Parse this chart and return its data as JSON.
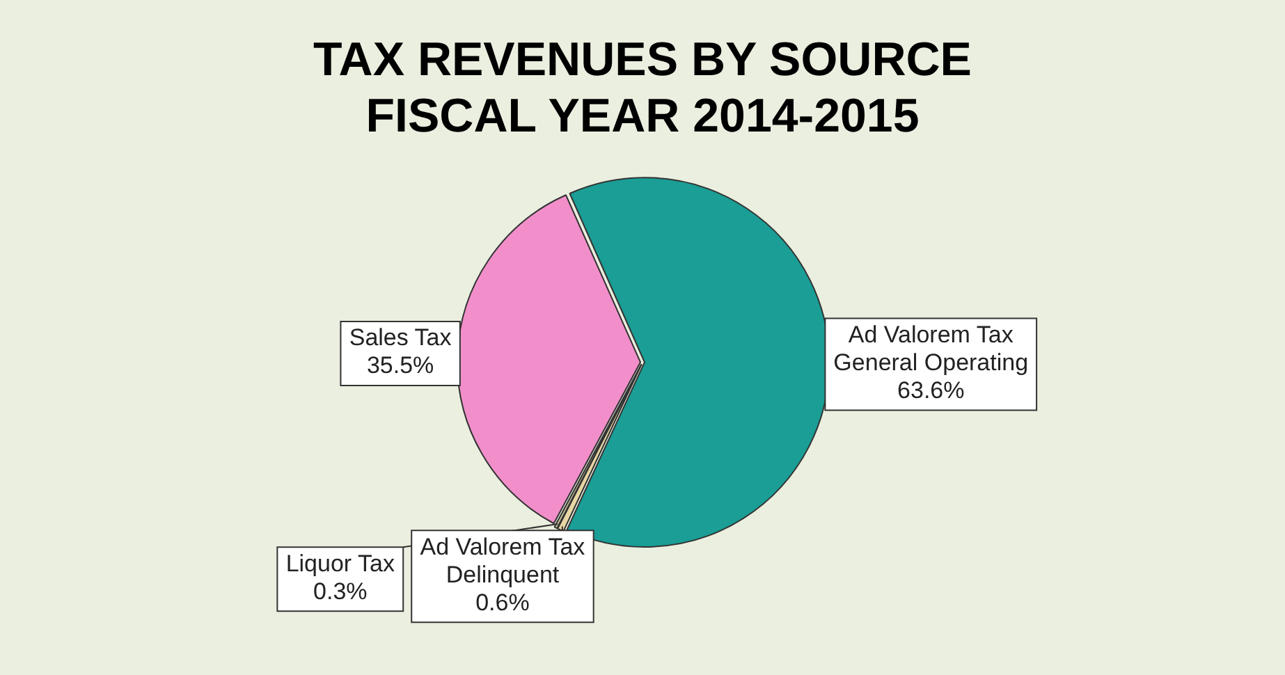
{
  "chart_data": {
    "type": "pie",
    "title": "TAX REVENUES BY SOURCE FISCAL YEAR 2014-2015",
    "categories": [
      "Ad Valorem Tax General Operating",
      "Ad Valorem Tax Delinquent",
      "Liquor Tax",
      "Sales Tax"
    ],
    "values": [
      63.6,
      0.6,
      0.3,
      35.5
    ],
    "value_labels": [
      "63.6%",
      "0.6%",
      "0.3%",
      "35.5%"
    ],
    "colors": [
      "#1a9e96",
      "#e8d6a4",
      "#c9c49a",
      "#f28fcb"
    ]
  }
}
